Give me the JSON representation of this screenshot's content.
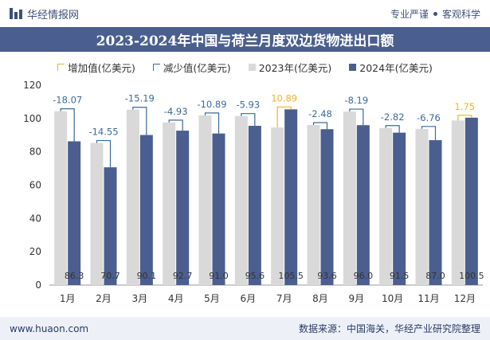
{
  "header": {
    "brand": "华经情报网",
    "tagline_left": "专业严谨",
    "tagline_right": "客观科学"
  },
  "chart_data": {
    "type": "bar",
    "title": "2023-2024年中国与荷兰月度双边货物进出口额",
    "categories": [
      "1月",
      "2月",
      "3月",
      "4月",
      "5月",
      "6月",
      "7月",
      "8月",
      "9月",
      "10月",
      "11月",
      "12月"
    ],
    "series": [
      {
        "name": "2023年(亿美元)",
        "color": "#d9d9d9",
        "values": [
          104.4,
          85.3,
          105.3,
          97.6,
          101.9,
          101.5,
          94.6,
          96.1,
          104.2,
          94.3,
          93.8,
          98.8
        ]
      },
      {
        "name": "2024年(亿美元)",
        "color": "#4a5f8f",
        "values": [
          86.3,
          70.7,
          90.1,
          92.7,
          91.0,
          95.6,
          105.5,
          93.6,
          96.0,
          91.5,
          87.0,
          100.5
        ]
      }
    ],
    "change": {
      "values": [
        -18.07,
        -14.55,
        -15.19,
        -4.93,
        -10.89,
        -5.93,
        10.89,
        -2.48,
        -8.19,
        -2.82,
        -6.76,
        1.75
      ],
      "labels": [
        "-18.07",
        "-14.55",
        "-15.19",
        "-4.93",
        "-10.89",
        "-5.93",
        "10.89",
        "-2.48",
        "-8.19",
        "-2.82",
        "-6.76",
        "1.75"
      ]
    },
    "value_labels": [
      "86.3",
      "70.7",
      "90.1",
      "92.7",
      "91.0",
      "95.6",
      "105.5",
      "93.6",
      "96.0",
      "91.5",
      "87.0",
      "100.5"
    ],
    "legend": [
      {
        "label": "增加值(亿美元)",
        "kind": "increase"
      },
      {
        "label": "减少值(亿美元)",
        "kind": "decrease"
      },
      {
        "label": "2023年(亿美元)",
        "kind": "y2023"
      },
      {
        "label": "2024年(亿美元)",
        "kind": "y2024"
      }
    ],
    "ylim": [
      0,
      120
    ],
    "yticks": [
      "0",
      "20",
      "40",
      "60",
      "80",
      "100",
      "120"
    ],
    "increase_color": "#f2b227",
    "decrease_color": "#3a6a9c",
    "grid": false,
    "legend_position": "top"
  },
  "footer": {
    "website": "www.huaon.com",
    "source": "数据来源：中国海关，华经产业研究院整理"
  }
}
